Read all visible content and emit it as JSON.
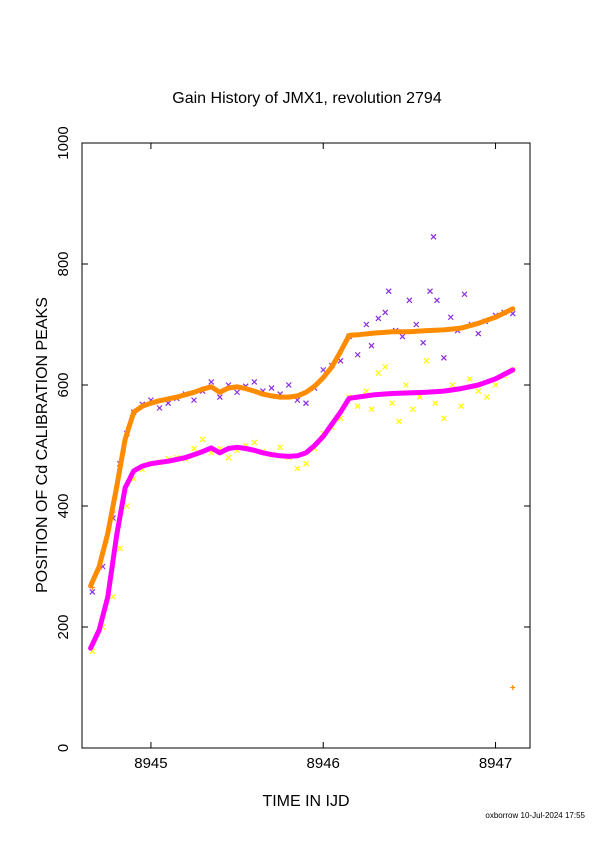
{
  "chart_data": {
    "type": "scatter",
    "title": "Gain History of JMX1, revolution 2794",
    "xlabel": "TIME IN IJD",
    "ylabel": "POSITION OF Cd CALIBRATION PEAKS",
    "xlim": [
      8944.6,
      8947.2
    ],
    "ylim": [
      0,
      1000
    ],
    "xticks": [
      8945,
      8946,
      8947
    ],
    "yticks": [
      0,
      200,
      400,
      600,
      800,
      1000
    ],
    "grid": false,
    "legend": "none",
    "footer": "oxborrow 10-Jul-2024 17:55",
    "series": [
      {
        "marker": "x",
        "color": "#8a2be2",
        "points": [
          [
            8944.66,
            258
          ],
          [
            8944.72,
            300
          ],
          [
            8944.78,
            380
          ],
          [
            8944.82,
            470
          ],
          [
            8944.86,
            520
          ],
          [
            8944.9,
            555
          ],
          [
            8944.95,
            568
          ],
          [
            8945.0,
            575
          ],
          [
            8945.05,
            562
          ],
          [
            8945.1,
            570
          ],
          [
            8945.15,
            578
          ],
          [
            8945.2,
            585
          ],
          [
            8945.25,
            575
          ],
          [
            8945.3,
            590
          ],
          [
            8945.35,
            605
          ],
          [
            8945.4,
            580
          ],
          [
            8945.45,
            600
          ],
          [
            8945.5,
            588
          ],
          [
            8945.55,
            598
          ],
          [
            8945.6,
            605
          ],
          [
            8945.65,
            590
          ],
          [
            8945.7,
            595
          ],
          [
            8945.75,
            585
          ],
          [
            8945.8,
            600
          ],
          [
            8945.85,
            575
          ],
          [
            8945.9,
            570
          ],
          [
            8945.95,
            595
          ],
          [
            8946.0,
            625
          ],
          [
            8946.05,
            632
          ],
          [
            8946.1,
            640
          ],
          [
            8946.15,
            680
          ],
          [
            8946.2,
            650
          ],
          [
            8946.25,
            700
          ],
          [
            8946.28,
            665
          ],
          [
            8946.32,
            710
          ],
          [
            8946.36,
            720
          ],
          [
            8946.38,
            755
          ],
          [
            8946.42,
            690
          ],
          [
            8946.46,
            680
          ],
          [
            8946.5,
            740
          ],
          [
            8946.54,
            700
          ],
          [
            8946.58,
            670
          ],
          [
            8946.62,
            755
          ],
          [
            8946.64,
            845
          ],
          [
            8946.66,
            740
          ],
          [
            8946.7,
            645
          ],
          [
            8946.74,
            712
          ],
          [
            8946.78,
            690
          ],
          [
            8946.82,
            750
          ],
          [
            8946.86,
            700
          ],
          [
            8946.9,
            685
          ],
          [
            8946.94,
            705
          ],
          [
            8947.0,
            715
          ],
          [
            8947.05,
            720
          ],
          [
            8947.1,
            718
          ]
        ]
      },
      {
        "marker": "x",
        "color": "#ffff00",
        "points": [
          [
            8944.66,
            160
          ],
          [
            8944.72,
            200
          ],
          [
            8944.78,
            250
          ],
          [
            8944.82,
            330
          ],
          [
            8944.86,
            400
          ],
          [
            8944.9,
            445
          ],
          [
            8944.95,
            460
          ],
          [
            8945.0,
            470
          ],
          [
            8945.05,
            472
          ],
          [
            8945.1,
            478
          ],
          [
            8945.15,
            480
          ],
          [
            8945.2,
            478
          ],
          [
            8945.25,
            495
          ],
          [
            8945.3,
            510
          ],
          [
            8945.35,
            488
          ],
          [
            8945.4,
            495
          ],
          [
            8945.45,
            480
          ],
          [
            8945.5,
            492
          ],
          [
            8945.55,
            500
          ],
          [
            8945.6,
            505
          ],
          [
            8945.65,
            490
          ],
          [
            8945.7,
            485
          ],
          [
            8945.75,
            497
          ],
          [
            8945.8,
            480
          ],
          [
            8945.85,
            462
          ],
          [
            8945.9,
            470
          ],
          [
            8945.95,
            495
          ],
          [
            8946.0,
            520
          ],
          [
            8946.05,
            530
          ],
          [
            8946.1,
            545
          ],
          [
            8946.15,
            580
          ],
          [
            8946.2,
            565
          ],
          [
            8946.25,
            590
          ],
          [
            8946.28,
            560
          ],
          [
            8946.32,
            620
          ],
          [
            8946.36,
            630
          ],
          [
            8946.4,
            570
          ],
          [
            8946.44,
            540
          ],
          [
            8946.48,
            600
          ],
          [
            8946.52,
            560
          ],
          [
            8946.56,
            580
          ],
          [
            8946.6,
            640
          ],
          [
            8946.65,
            570
          ],
          [
            8946.7,
            545
          ],
          [
            8946.75,
            600
          ],
          [
            8946.8,
            565
          ],
          [
            8946.85,
            610
          ],
          [
            8946.9,
            590
          ],
          [
            8946.95,
            580
          ],
          [
            8947.0,
            600
          ],
          [
            8947.05,
            615
          ],
          [
            8947.1,
            625
          ]
        ]
      },
      {
        "marker": "+",
        "color": "#ff8c00",
        "points": [
          [
            8944.66,
            265
          ],
          [
            8944.7,
            295
          ],
          [
            8944.74,
            340
          ],
          [
            8944.78,
            390
          ],
          [
            8944.8,
            430
          ],
          [
            8944.84,
            490
          ],
          [
            8944.87,
            530
          ],
          [
            8947.1,
            100
          ]
        ]
      }
    ],
    "curves": [
      {
        "color": "#ff8c00",
        "x": [
          8944.65,
          8944.7,
          8944.75,
          8944.8,
          8944.85,
          8944.9,
          8944.95,
          8945.0,
          8945.05,
          8945.1,
          8945.15,
          8945.2,
          8945.25,
          8945.3,
          8945.35,
          8945.4,
          8945.45,
          8945.5,
          8945.55,
          8945.6,
          8945.65,
          8945.7,
          8945.75,
          8945.8,
          8945.85,
          8945.9,
          8945.95,
          8946.0,
          8946.05,
          8946.1,
          8946.15,
          8946.2,
          8946.3,
          8946.4,
          8946.5,
          8946.6,
          8946.7,
          8946.8,
          8946.9,
          8947.0,
          8947.1
        ],
        "y": [
          268,
          300,
          355,
          430,
          510,
          555,
          565,
          570,
          574,
          577,
          580,
          584,
          588,
          593,
          597,
          588,
          595,
          597,
          594,
          590,
          585,
          582,
          580,
          580,
          582,
          588,
          598,
          612,
          630,
          655,
          682,
          683,
          686,
          688,
          688,
          690,
          691,
          694,
          702,
          712,
          726
        ]
      },
      {
        "color": "#ff00ff",
        "x": [
          8944.65,
          8944.7,
          8944.75,
          8944.8,
          8944.85,
          8944.9,
          8944.95,
          8945.0,
          8945.05,
          8945.1,
          8945.15,
          8945.2,
          8945.25,
          8945.3,
          8945.35,
          8945.4,
          8945.45,
          8945.5,
          8945.55,
          8945.6,
          8945.65,
          8945.7,
          8945.75,
          8945.8,
          8945.85,
          8945.9,
          8945.95,
          8946.0,
          8946.05,
          8946.1,
          8946.15,
          8946.2,
          8946.3,
          8946.4,
          8946.5,
          8946.6,
          8946.7,
          8946.8,
          8946.9,
          8947.0,
          8947.1
        ],
        "y": [
          165,
          195,
          250,
          350,
          430,
          458,
          466,
          470,
          472,
          474,
          477,
          480,
          485,
          490,
          496,
          488,
          495,
          497,
          495,
          492,
          488,
          485,
          483,
          482,
          483,
          488,
          500,
          515,
          535,
          555,
          578,
          580,
          584,
          586,
          587,
          588,
          590,
          594,
          600,
          610,
          625
        ]
      }
    ]
  }
}
